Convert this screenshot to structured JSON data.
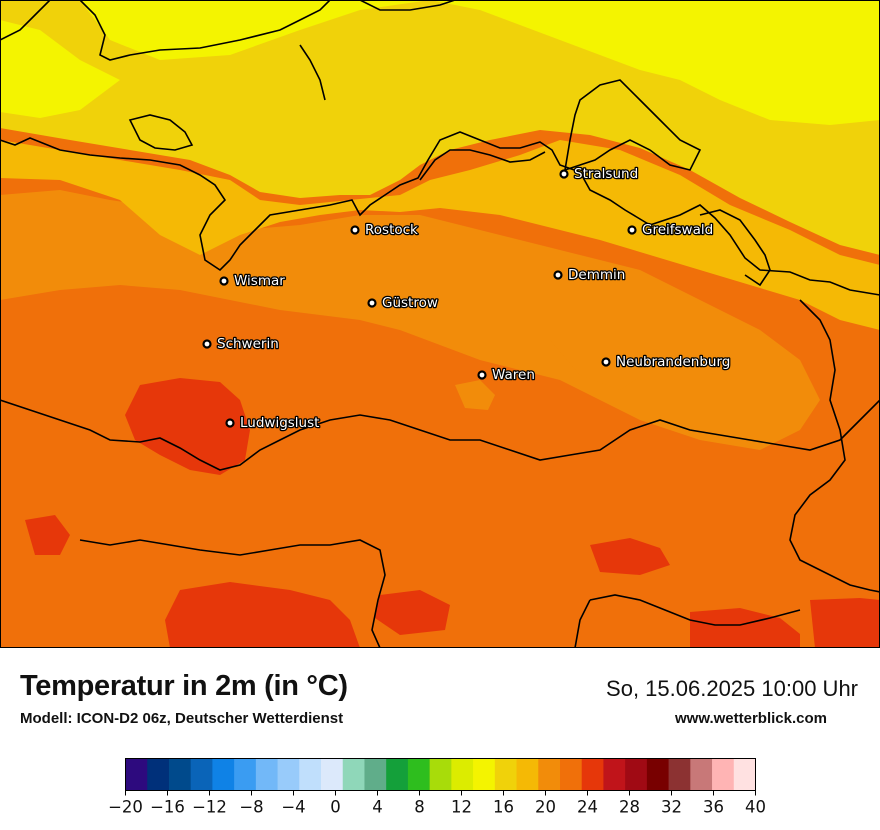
{
  "map": {
    "cities": [
      {
        "name": "Stralsund"
      },
      {
        "name": "Rostock"
      },
      {
        "name": "Greifswald"
      },
      {
        "name": "Wismar"
      },
      {
        "name": "Demmin"
      },
      {
        "name": "Güstrow"
      },
      {
        "name": "Schwerin"
      },
      {
        "name": "Neubrandenburg"
      },
      {
        "name": "Waren"
      },
      {
        "name": "Ludwigslust"
      }
    ]
  },
  "footer": {
    "title": "Temperatur in 2m (in °C)",
    "subtitle": "Modell: ICON-D2 06z, Deutscher Wetterdienst",
    "datetime": "So, 15.06.2025 10:00 Uhr",
    "website": "www.wetterblick.com"
  },
  "legend": {
    "min": -20,
    "max": 40,
    "step": 2,
    "tick_labels": [
      "−20",
      "−16",
      "−12",
      "−8",
      "−4",
      "0",
      "4",
      "8",
      "12",
      "16",
      "20",
      "24",
      "28",
      "32",
      "36",
      "40"
    ],
    "colors": [
      "#2d0a7e",
      "#00307a",
      "#004a8c",
      "#0a64b8",
      "#0f82e6",
      "#3a9cf2",
      "#72b8f8",
      "#98cbfa",
      "#c0dffc",
      "#dce9fb",
      "#8fd7b9",
      "#60ad8a",
      "#14a03a",
      "#2ebe1e",
      "#a8dc0a",
      "#dcec00",
      "#f4f400",
      "#f0d20a",
      "#f5b905",
      "#f28c0a",
      "#f0700a",
      "#e6370a",
      "#c0141a",
      "#a00a14",
      "#780000",
      "#8c3232",
      "#c87878",
      "#ffb4b4",
      "#ffe1e1"
    ]
  }
}
